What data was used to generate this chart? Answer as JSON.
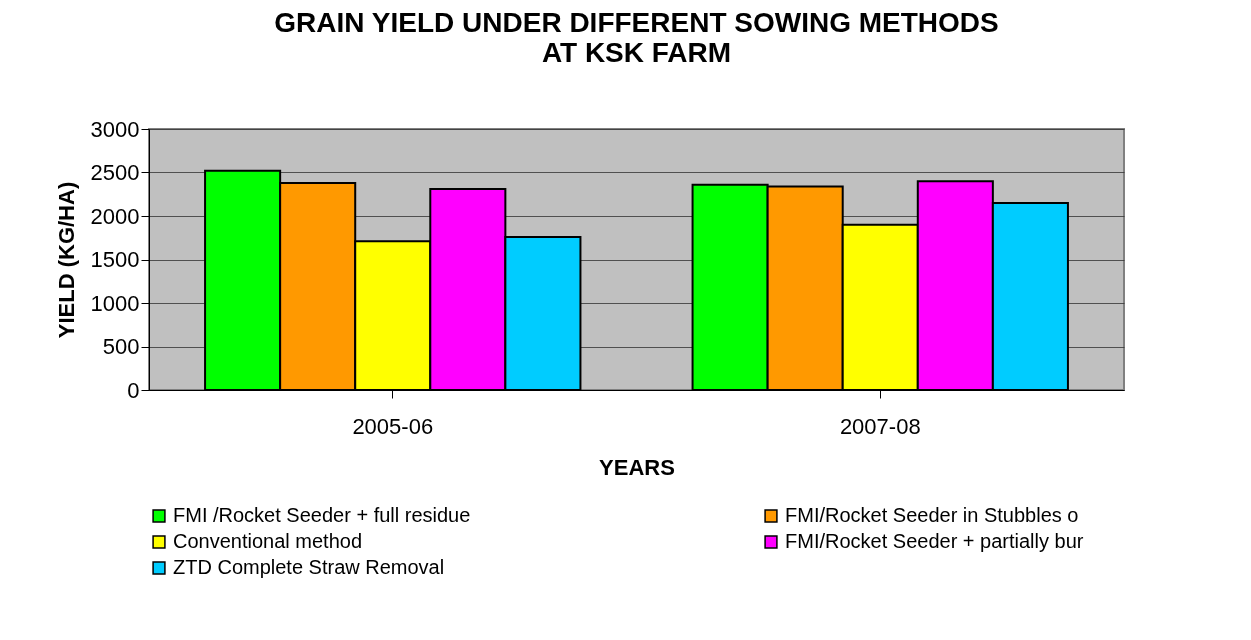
{
  "chart_data": {
    "type": "bar",
    "title": "GRAIN YIELD UNDER DIFFERENT SOWING  METHODS\nAT KSK FARM",
    "xlabel": "YEARS",
    "ylabel": "YIELD (KG/HA)",
    "categories": [
      "2005-06",
      "2007-08"
    ],
    "series": [
      {
        "name": "FMI /Rocket Seeder + full residue",
        "color": "#00ff00",
        "values": [
          2520,
          2360
        ]
      },
      {
        "name": "FMI/Rocket  Seeder in Stubbles o",
        "color": "#ff9900",
        "values": [
          2380,
          2340
        ]
      },
      {
        "name": "Conventional method",
        "color": "#ffff00",
        "values": [
          1710,
          1900
        ]
      },
      {
        "name": "FMI/Rocket Seeder + partially bur",
        "color": "#ff00ff",
        "values": [
          2310,
          2400
        ]
      },
      {
        "name": "ZTD Complete Straw Removal",
        "color": "#00ccff",
        "values": [
          1760,
          2150
        ]
      }
    ],
    "ylim": [
      0,
      3000
    ],
    "yticks": [
      0,
      500,
      1000,
      1500,
      2000,
      2500,
      3000
    ],
    "grid": "y",
    "legend": "bottom"
  }
}
